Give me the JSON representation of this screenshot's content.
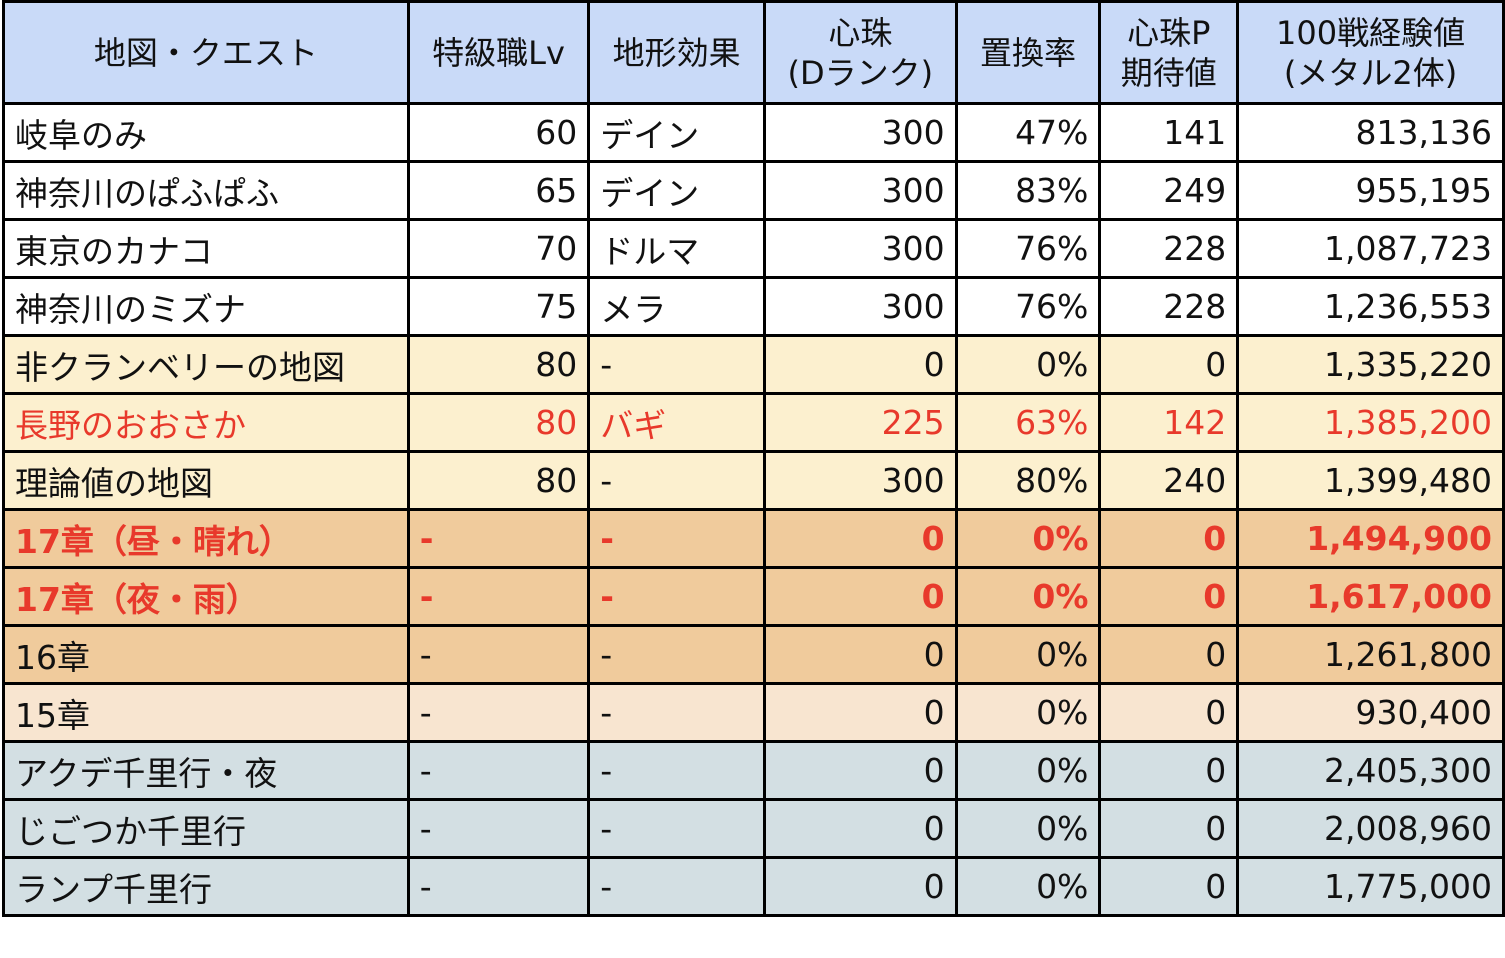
{
  "headers": [
    "地図・クエスト",
    "特級職Lv",
    "地形効果",
    "心珠\n(Dランク)",
    "置換率",
    "心珠P\n期待値",
    "100戦経験値\n(メタル2体)"
  ],
  "row_colors": {
    "white": "#ffffff",
    "yellow": "#fcf0cf",
    "orange": "#f0cb9c",
    "peach": "#f8e5d0",
    "gray": "#d3dfe3",
    "red_text": "#e8392b"
  },
  "rows": [
    {
      "cells": [
        "岐阜のみ",
        "60",
        "デイン",
        "300",
        "47%",
        "141",
        "813,136"
      ],
      "bg": "white",
      "red": false,
      "bold": false
    },
    {
      "cells": [
        "神奈川のぱふぱふ",
        "65",
        "デイン",
        "300",
        "83%",
        "249",
        "955,195"
      ],
      "bg": "white",
      "red": false,
      "bold": false
    },
    {
      "cells": [
        "東京のカナコ",
        "70",
        "ドルマ",
        "300",
        "76%",
        "228",
        "1,087,723"
      ],
      "bg": "white",
      "red": false,
      "bold": false
    },
    {
      "cells": [
        "神奈川のミズナ",
        "75",
        "メラ",
        "300",
        "76%",
        "228",
        "1,236,553"
      ],
      "bg": "white",
      "red": false,
      "bold": false
    },
    {
      "cells": [
        "非クランベリーの地図",
        "80",
        "-",
        "0",
        "0%",
        "0",
        "1,335,220"
      ],
      "bg": "yellow",
      "red": false,
      "bold": false
    },
    {
      "cells": [
        "長野のおおさか",
        "80",
        "バギ",
        "225",
        "63%",
        "142",
        "1,385,200"
      ],
      "bg": "yellow",
      "red": true,
      "bold": false
    },
    {
      "cells": [
        "理論値の地図",
        "80",
        "-",
        "300",
        "80%",
        "240",
        "1,399,480"
      ],
      "bg": "yellow",
      "red": false,
      "bold": false
    },
    {
      "cells": [
        "17章（昼・晴れ）",
        "-",
        "-",
        "0",
        "0%",
        "0",
        "1,494,900"
      ],
      "bg": "orange",
      "red": true,
      "bold": true
    },
    {
      "cells": [
        "17章（夜・雨）",
        "-",
        "-",
        "0",
        "0%",
        "0",
        "1,617,000"
      ],
      "bg": "orange",
      "red": true,
      "bold": true
    },
    {
      "cells": [
        "16章",
        "-",
        "-",
        "0",
        "0%",
        "0",
        "1,261,800"
      ],
      "bg": "orange",
      "red": false,
      "bold": false
    },
    {
      "cells": [
        "15章",
        "-",
        "-",
        "0",
        "0%",
        "0",
        "930,400"
      ],
      "bg": "peach",
      "red": false,
      "bold": false
    },
    {
      "cells": [
        "アクデ千里行・夜",
        "-",
        "-",
        "0",
        "0%",
        "0",
        "2,405,300"
      ],
      "bg": "gray",
      "red": false,
      "bold": false
    },
    {
      "cells": [
        "じごつか千里行",
        "-",
        "-",
        "0",
        "0%",
        "0",
        "2,008,960"
      ],
      "bg": "gray",
      "red": false,
      "bold": false
    },
    {
      "cells": [
        "ランプ千里行",
        "-",
        "-",
        "0",
        "0%",
        "0",
        "1,775,000"
      ],
      "bg": "gray",
      "red": false,
      "bold": false
    }
  ]
}
